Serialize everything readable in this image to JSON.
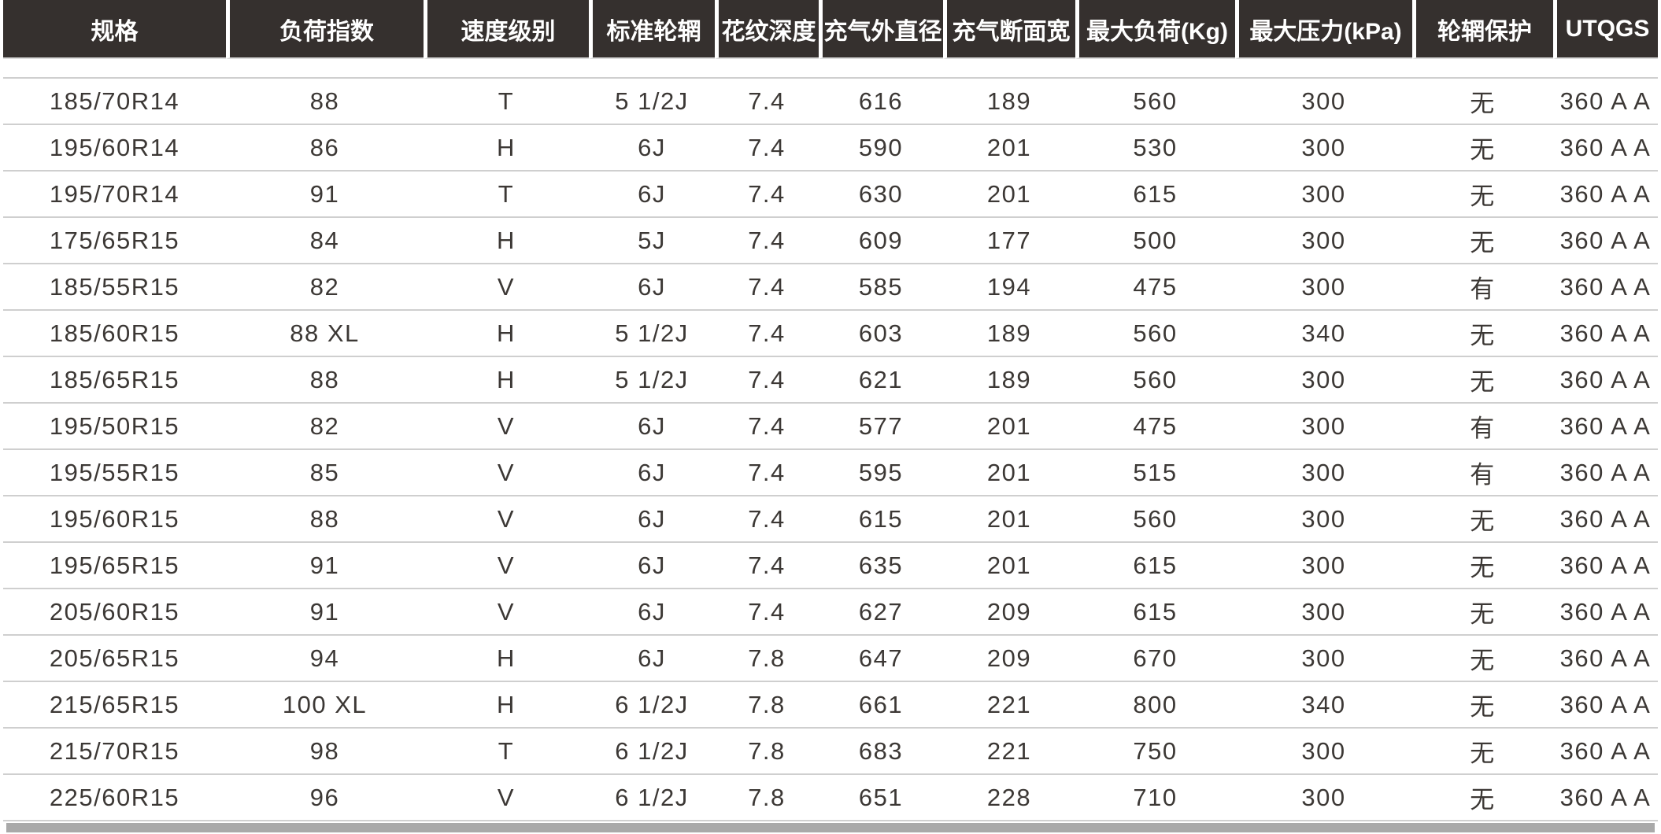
{
  "table": {
    "columns": [
      {
        "key": "spec",
        "label": "规格"
      },
      {
        "key": "load-index",
        "label": "负荷指数"
      },
      {
        "key": "speed-rating",
        "label": "速度级别"
      },
      {
        "key": "standard-rim",
        "label": "标准轮辋"
      },
      {
        "key": "tread-depth",
        "label": "花纹深度"
      },
      {
        "key": "inflated-diameter",
        "label": "充气外直径"
      },
      {
        "key": "inflated-section-width",
        "label": "充气断面宽"
      },
      {
        "key": "max-load",
        "label": "最大负荷(Kg)"
      },
      {
        "key": "max-pressure",
        "label": "最大压力(kPa)"
      },
      {
        "key": "rim-protection",
        "label": "轮辋保护"
      },
      {
        "key": "utqgs",
        "label": "UTQGS"
      }
    ],
    "rows": [
      [
        "185/70R14",
        "88",
        "T",
        "5 1/2J",
        "7.4",
        "616",
        "189",
        "560",
        "300",
        "无",
        "360 A A"
      ],
      [
        "195/60R14",
        "86",
        "H",
        "6J",
        "7.4",
        "590",
        "201",
        "530",
        "300",
        "无",
        "360 A A"
      ],
      [
        "195/70R14",
        "91",
        "T",
        "6J",
        "7.4",
        "630",
        "201",
        "615",
        "300",
        "无",
        "360 A A"
      ],
      [
        "175/65R15",
        "84",
        "H",
        "5J",
        "7.4",
        "609",
        "177",
        "500",
        "300",
        "无",
        "360 A A"
      ],
      [
        "185/55R15",
        "82",
        "V",
        "6J",
        "7.4",
        "585",
        "194",
        "475",
        "300",
        "有",
        "360 A A"
      ],
      [
        "185/60R15",
        "88 XL",
        "H",
        "5 1/2J",
        "7.4",
        "603",
        "189",
        "560",
        "340",
        "无",
        "360 A A"
      ],
      [
        "185/65R15",
        "88",
        "H",
        "5 1/2J",
        "7.4",
        "621",
        "189",
        "560",
        "300",
        "无",
        "360 A A"
      ],
      [
        "195/50R15",
        "82",
        "V",
        "6J",
        "7.4",
        "577",
        "201",
        "475",
        "300",
        "有",
        "360 A A"
      ],
      [
        "195/55R15",
        "85",
        "V",
        "6J",
        "7.4",
        "595",
        "201",
        "515",
        "300",
        "有",
        "360 A A"
      ],
      [
        "195/60R15",
        "88",
        "V",
        "6J",
        "7.4",
        "615",
        "201",
        "560",
        "300",
        "无",
        "360 A A"
      ],
      [
        "195/65R15",
        "91",
        "V",
        "6J",
        "7.4",
        "635",
        "201",
        "615",
        "300",
        "无",
        "360 A A"
      ],
      [
        "205/60R15",
        "91",
        "V",
        "6J",
        "7.4",
        "627",
        "209",
        "615",
        "300",
        "无",
        "360 A A"
      ],
      [
        "205/65R15",
        "94",
        "H",
        "6J",
        "7.8",
        "647",
        "209",
        "670",
        "300",
        "无",
        "360 A A"
      ],
      [
        "215/65R15",
        "100 XL",
        "H",
        "6 1/2J",
        "7.8",
        "661",
        "221",
        "800",
        "340",
        "无",
        "360 A A"
      ],
      [
        "215/70R15",
        "98",
        "T",
        "6 1/2J",
        "7.8",
        "683",
        "221",
        "750",
        "300",
        "无",
        "360 A A"
      ],
      [
        "225/60R15",
        "96",
        "V",
        "6 1/2J",
        "7.8",
        "651",
        "228",
        "710",
        "300",
        "无",
        "360 A A"
      ]
    ]
  },
  "colors": {
    "header_bg": "#35302e",
    "header_text": "#ffffff",
    "body_text": "#3c3835",
    "row_line": "#cfcfcf",
    "header_underline": "#dcdcdc",
    "bottom_bar": "#a9a9a9",
    "page_bg": "#ffffff"
  }
}
